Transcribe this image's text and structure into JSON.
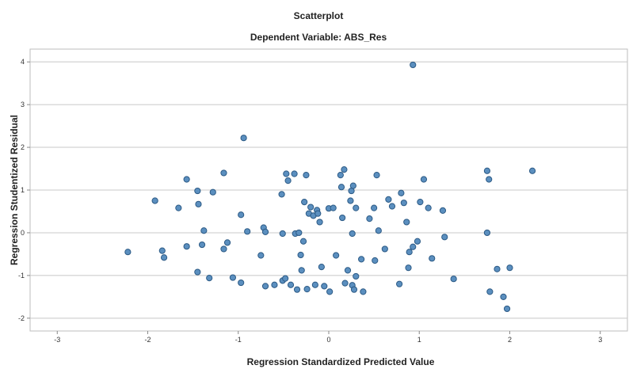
{
  "chart_data": {
    "type": "scatter",
    "title": "Scatterplot",
    "subtitle": "Dependent Variable: ABS_Res",
    "xlabel": "Regression Standardized Predicted Value",
    "ylabel": "Regression Studentized Residual",
    "xlim": [
      -3.3,
      3.3
    ],
    "ylim": [
      -2.3,
      4.3
    ],
    "xticks": [
      "-3",
      "-2",
      "-1",
      "0",
      "1",
      "2",
      "3"
    ],
    "xtick_values": [
      -3,
      -2,
      -1,
      0,
      1,
      2,
      3
    ],
    "yticks": [
      "-2",
      "-1",
      "0",
      "1",
      "2",
      "3",
      "4"
    ],
    "ytick_values": [
      -2,
      -1,
      0,
      1,
      2,
      3,
      4
    ],
    "grid": "horizontal",
    "colors": {
      "point_fill": "#5b8fbf",
      "point_stroke": "#2c5a85",
      "grid": "#c8c8c8"
    },
    "points": [
      {
        "x": 0.93,
        "y": 3.93
      },
      {
        "x": -0.94,
        "y": 2.22
      },
      {
        "x": -2.22,
        "y": -0.45
      },
      {
        "x": -1.92,
        "y": 0.75
      },
      {
        "x": -1.84,
        "y": -0.42
      },
      {
        "x": -1.82,
        "y": -0.58
      },
      {
        "x": -1.66,
        "y": 0.58
      },
      {
        "x": -1.57,
        "y": 1.25
      },
      {
        "x": -1.57,
        "y": -0.32
      },
      {
        "x": -1.45,
        "y": 0.98
      },
      {
        "x": -1.44,
        "y": 0.67
      },
      {
        "x": -1.45,
        "y": -0.92
      },
      {
        "x": -1.38,
        "y": 0.05
      },
      {
        "x": -1.4,
        "y": -0.28
      },
      {
        "x": -1.32,
        "y": -1.06
      },
      {
        "x": -1.28,
        "y": 0.95
      },
      {
        "x": -1.16,
        "y": 1.4
      },
      {
        "x": -1.16,
        "y": -0.38
      },
      {
        "x": -1.12,
        "y": -0.23
      },
      {
        "x": -1.06,
        "y": -1.05
      },
      {
        "x": -0.97,
        "y": 0.42
      },
      {
        "x": -0.97,
        "y": -1.17
      },
      {
        "x": -0.9,
        "y": 0.03
      },
      {
        "x": -0.75,
        "y": -0.53
      },
      {
        "x": -0.72,
        "y": 0.12
      },
      {
        "x": -0.7,
        "y": 0.02
      },
      {
        "x": -0.7,
        "y": -1.25
      },
      {
        "x": -0.6,
        "y": -1.22
      },
      {
        "x": -0.52,
        "y": 0.9
      },
      {
        "x": -0.51,
        "y": -0.02
      },
      {
        "x": -0.51,
        "y": -1.12
      },
      {
        "x": -0.48,
        "y": -1.07
      },
      {
        "x": -0.47,
        "y": 1.38
      },
      {
        "x": -0.45,
        "y": 1.22
      },
      {
        "x": -0.42,
        "y": -1.22
      },
      {
        "x": -0.38,
        "y": 1.38
      },
      {
        "x": -0.37,
        "y": -0.02
      },
      {
        "x": -0.35,
        "y": -1.33
      },
      {
        "x": -0.33,
        "y": 0.0
      },
      {
        "x": -0.31,
        "y": -0.52
      },
      {
        "x": -0.3,
        "y": -0.88
      },
      {
        "x": -0.28,
        "y": -0.2
      },
      {
        "x": -0.27,
        "y": 0.72
      },
      {
        "x": -0.25,
        "y": 1.35
      },
      {
        "x": -0.24,
        "y": -1.32
      },
      {
        "x": -0.22,
        "y": 0.45
      },
      {
        "x": -0.2,
        "y": 0.6
      },
      {
        "x": -0.17,
        "y": 0.4
      },
      {
        "x": -0.15,
        "y": -1.22
      },
      {
        "x": -0.13,
        "y": 0.53
      },
      {
        "x": -0.12,
        "y": 0.45
      },
      {
        "x": -0.1,
        "y": 0.25
      },
      {
        "x": -0.08,
        "y": -0.8
      },
      {
        "x": -0.05,
        "y": -1.25
      },
      {
        "x": 0.0,
        "y": 0.57
      },
      {
        "x": 0.01,
        "y": -1.38
      },
      {
        "x": 0.05,
        "y": 0.58
      },
      {
        "x": 0.08,
        "y": -0.53
      },
      {
        "x": 0.13,
        "y": 1.35
      },
      {
        "x": 0.14,
        "y": 1.07
      },
      {
        "x": 0.15,
        "y": 0.35
      },
      {
        "x": 0.17,
        "y": 1.48
      },
      {
        "x": 0.18,
        "y": -1.18
      },
      {
        "x": 0.21,
        "y": -0.88
      },
      {
        "x": 0.24,
        "y": 0.75
      },
      {
        "x": 0.25,
        "y": 0.98
      },
      {
        "x": 0.26,
        "y": -0.02
      },
      {
        "x": 0.26,
        "y": -1.23
      },
      {
        "x": 0.27,
        "y": 1.1
      },
      {
        "x": 0.28,
        "y": -1.33
      },
      {
        "x": 0.3,
        "y": 0.58
      },
      {
        "x": 0.3,
        "y": -1.02
      },
      {
        "x": 0.36,
        "y": -0.62
      },
      {
        "x": 0.38,
        "y": -1.38
      },
      {
        "x": 0.45,
        "y": 0.33
      },
      {
        "x": 0.5,
        "y": 0.58
      },
      {
        "x": 0.51,
        "y": -0.65
      },
      {
        "x": 0.53,
        "y": 1.35
      },
      {
        "x": 0.55,
        "y": 0.05
      },
      {
        "x": 0.62,
        "y": -0.38
      },
      {
        "x": 0.66,
        "y": 0.78
      },
      {
        "x": 0.7,
        "y": 0.62
      },
      {
        "x": 0.78,
        "y": -1.2
      },
      {
        "x": 0.8,
        "y": 0.93
      },
      {
        "x": 0.83,
        "y": 0.7
      },
      {
        "x": 0.86,
        "y": 0.25
      },
      {
        "x": 0.88,
        "y": -0.82
      },
      {
        "x": 0.89,
        "y": -0.45
      },
      {
        "x": 0.93,
        "y": -0.33
      },
      {
        "x": 0.98,
        "y": -0.2
      },
      {
        "x": 1.01,
        "y": 0.72
      },
      {
        "x": 1.05,
        "y": 1.25
      },
      {
        "x": 1.1,
        "y": 0.58
      },
      {
        "x": 1.14,
        "y": -0.6
      },
      {
        "x": 1.26,
        "y": 0.52
      },
      {
        "x": 1.28,
        "y": -0.1
      },
      {
        "x": 1.38,
        "y": -1.08
      },
      {
        "x": 1.75,
        "y": 1.45
      },
      {
        "x": 1.77,
        "y": 1.25
      },
      {
        "x": 1.75,
        "y": 0.0
      },
      {
        "x": 1.78,
        "y": -1.38
      },
      {
        "x": 1.86,
        "y": -0.85
      },
      {
        "x": 1.93,
        "y": -1.5
      },
      {
        "x": 1.97,
        "y": -1.78
      },
      {
        "x": 2.0,
        "y": -0.82
      },
      {
        "x": 2.25,
        "y": 1.45
      }
    ]
  }
}
